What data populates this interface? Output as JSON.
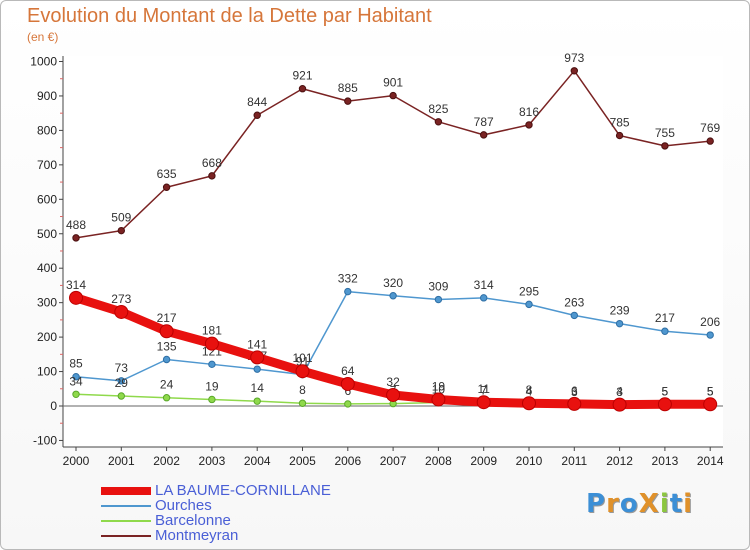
{
  "title": "Evolution du Montant de la Dette par Habitant",
  "subtitle": "(en €)",
  "logo": "ProXiti",
  "chart_data": {
    "type": "line",
    "x": [
      "2000",
      "2001",
      "2002",
      "2003",
      "2004",
      "2005",
      "2006",
      "2007",
      "2008",
      "2009",
      "2010",
      "2011",
      "2012",
      "2013",
      "2014"
    ],
    "ylim": [
      -100,
      1000
    ],
    "yticks": [
      "-100",
      "0",
      "100",
      "200",
      "300",
      "400",
      "500",
      "600",
      "700",
      "800",
      "900",
      "1000"
    ],
    "grid": false,
    "legend_position": "bottom-left",
    "series": [
      {
        "name": "Montmeyran",
        "color": "#7a2323",
        "values": [
          488,
          509,
          635,
          668,
          844,
          921,
          885,
          901,
          825,
          787,
          816,
          973,
          785,
          755,
          769
        ],
        "labels": [
          "488",
          "509",
          "635",
          "668",
          "844",
          "921",
          "885",
          "901",
          "825",
          "787",
          "816",
          "973",
          "785",
          "755",
          "769"
        ]
      },
      {
        "name": "Ourches",
        "color": "#4f97cf",
        "values": [
          85,
          73,
          135,
          121,
          107,
          91,
          332,
          320,
          309,
          314,
          295,
          263,
          239,
          217,
          206
        ],
        "labels": [
          "85",
          "73",
          "135",
          "121",
          "107",
          "91",
          "332",
          "320",
          "309",
          "314",
          "295",
          "263",
          "239",
          "217",
          "206"
        ]
      },
      {
        "name": "Barcelonne",
        "color": "#8fd94b",
        "values": [
          34,
          29,
          24,
          19,
          14,
          8,
          6,
          7,
          10,
          7,
          4,
          3,
          3,
          5,
          5
        ],
        "labels": [
          "34",
          "29",
          "24",
          "19",
          "14",
          "8",
          "6",
          "7",
          "10",
          "7",
          "4",
          "3",
          "3",
          "5",
          "5"
        ]
      },
      {
        "name": "LA BAUME-CORNILLANE",
        "color": "#e8110f",
        "values": [
          314,
          273,
          217,
          181,
          141,
          101,
          64,
          32,
          19,
          11,
          8,
          6,
          4,
          5,
          5
        ],
        "labels": [
          "314",
          "273",
          "217",
          "181",
          "141",
          "101",
          "64",
          "32",
          "19",
          "11",
          "8",
          "6",
          "4",
          "5",
          "5"
        ]
      }
    ],
    "legend_order": [
      "LA BAUME-CORNILLANE",
      "Ourches",
      "Barcelonne",
      "Montmeyran"
    ]
  }
}
